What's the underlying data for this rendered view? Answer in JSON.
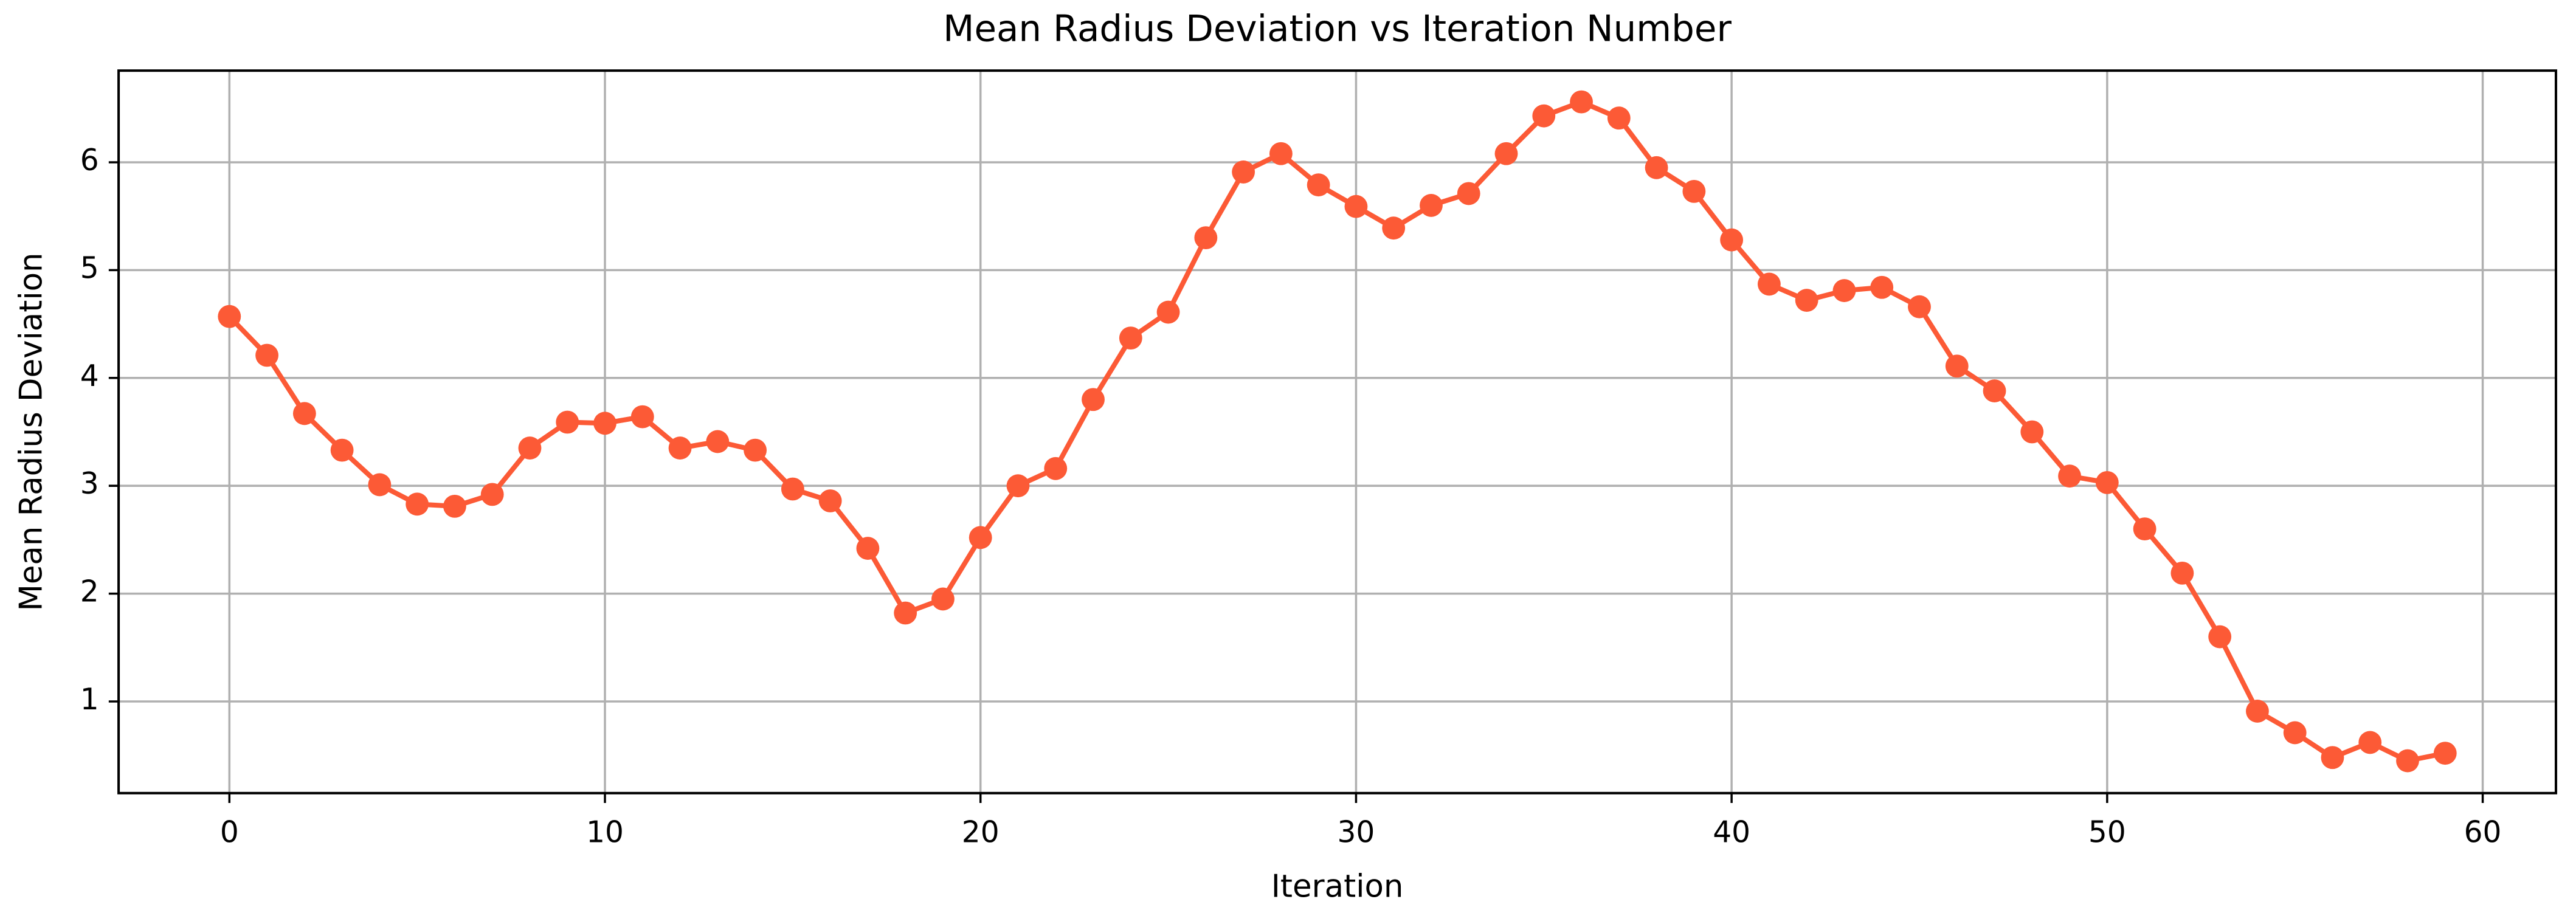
{
  "chart_data": {
    "type": "line",
    "title": "Mean Radius Deviation vs Iteration Number",
    "x_label": "Iteration",
    "y_label": "Mean Radius Deviation",
    "x": [
      0,
      1,
      2,
      3,
      4,
      5,
      6,
      7,
      8,
      9,
      10,
      11,
      12,
      13,
      14,
      15,
      16,
      17,
      18,
      19,
      20,
      21,
      22,
      23,
      24,
      25,
      26,
      27,
      28,
      29,
      30,
      31,
      32,
      33,
      34,
      35,
      36,
      37,
      38,
      39,
      40,
      41,
      42,
      43,
      44,
      45,
      46,
      47,
      48,
      49,
      50,
      51,
      52,
      53,
      54,
      55,
      56,
      57,
      58,
      59
    ],
    "series": [
      {
        "name": "Mean Radius Deviation",
        "color": "#fc5a36",
        "values": [
          4.57,
          4.21,
          3.67,
          3.33,
          3.01,
          2.83,
          2.81,
          2.92,
          3.35,
          3.59,
          3.58,
          3.64,
          3.35,
          3.41,
          3.33,
          2.97,
          2.86,
          2.42,
          1.82,
          1.95,
          2.52,
          3.0,
          3.16,
          3.8,
          4.37,
          4.61,
          5.3,
          5.91,
          6.08,
          5.79,
          5.59,
          5.39,
          5.6,
          5.71,
          6.08,
          6.43,
          6.56,
          6.41,
          5.95,
          5.73,
          5.28,
          4.87,
          4.72,
          4.81,
          4.84,
          4.66,
          4.11,
          3.88,
          3.5,
          3.09,
          3.03,
          2.6,
          2.19,
          1.6,
          0.91,
          0.71,
          0.48,
          0.62,
          0.45,
          0.52
        ]
      }
    ],
    "xlim": [
      -2.95,
      61.95
    ],
    "ylim": [
      0.15,
      6.85
    ],
    "xticks": [
      0,
      10,
      20,
      30,
      40,
      50,
      60
    ],
    "yticks": [
      1,
      2,
      3,
      4,
      5,
      6
    ],
    "grid": true
  }
}
